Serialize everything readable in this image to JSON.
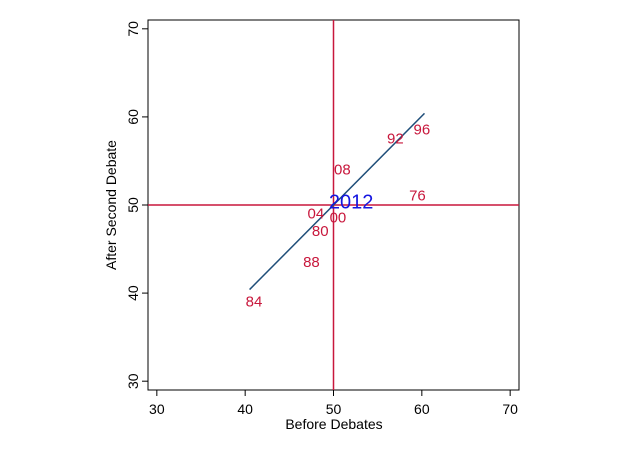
{
  "chart_data": {
    "type": "scatter",
    "xlabel": "Before Debates",
    "ylabel": "After Second Debate",
    "xlim": [
      29,
      71
    ],
    "ylim": [
      29,
      71
    ],
    "x_ticks": [
      30,
      40,
      50,
      60,
      70
    ],
    "y_ticks": [
      30,
      40,
      50,
      60,
      70
    ],
    "reference_lines": {
      "x": 50,
      "y": 50,
      "color": "#c8173c"
    },
    "points": [
      {
        "label": "84",
        "x": 41,
        "y": 39,
        "color": "#c8173c"
      },
      {
        "label": "88",
        "x": 47.5,
        "y": 43.5,
        "color": "#c8173c"
      },
      {
        "label": "80",
        "x": 48.5,
        "y": 47,
        "color": "#c8173c"
      },
      {
        "label": "04",
        "x": 48,
        "y": 49,
        "color": "#c8173c"
      },
      {
        "label": "00",
        "x": 50.5,
        "y": 48.5,
        "color": "#c8173c"
      },
      {
        "label": "08",
        "x": 51,
        "y": 54,
        "color": "#c8173c"
      },
      {
        "label": "76",
        "x": 59.5,
        "y": 51,
        "color": "#c8173c"
      },
      {
        "label": "92",
        "x": 57,
        "y": 57.5,
        "color": "#c8173c"
      },
      {
        "label": "96",
        "x": 60,
        "y": 58.5,
        "color": "#c8173c"
      },
      {
        "label": "2012",
        "x": 52,
        "y": 50.3,
        "color": "#1515e0"
      }
    ],
    "fit_line": {
      "x": [
        40.5,
        60.3
      ],
      "y": [
        40.4,
        60.4
      ],
      "color": "#1f4e79"
    },
    "grid": false,
    "legend": "none"
  }
}
